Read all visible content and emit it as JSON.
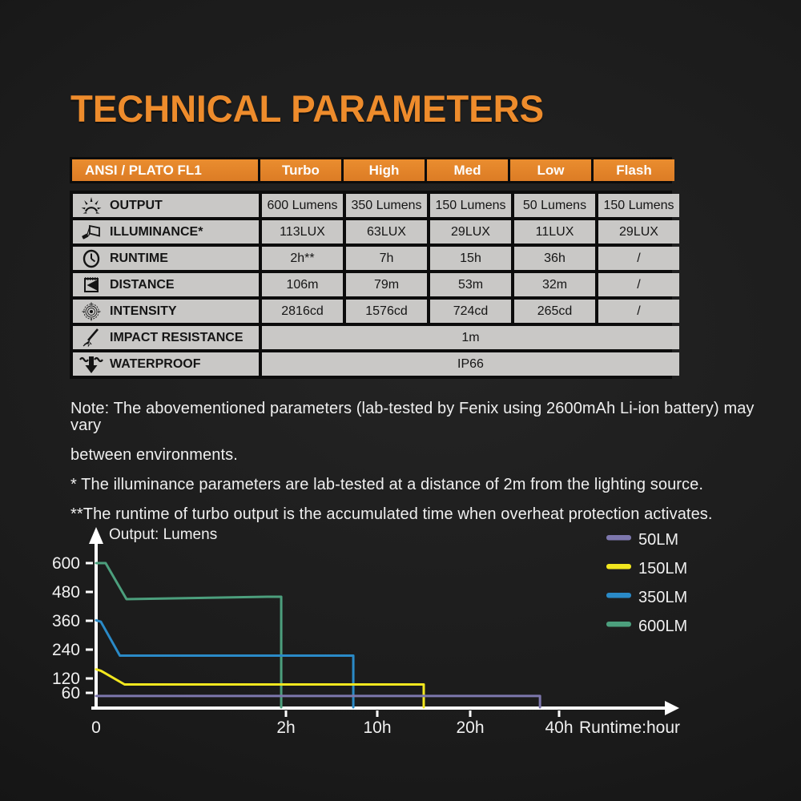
{
  "page": {
    "title": "TECHNICAL PARAMETERS"
  },
  "colors": {
    "accent_orange": "#ee8c2c",
    "table_header_orange": "#e2832a",
    "table_cell_gray": "#c9c8c6",
    "table_border_black": "#0c0c0c",
    "text_light": "#efefef",
    "background_dark": "#1b1b1b"
  },
  "table": {
    "header_label": "ANSI / PLATO FL1",
    "modes": [
      "Turbo",
      "High",
      "Med",
      "Low",
      "Flash"
    ],
    "rows": [
      {
        "icon": "light-burst-icon",
        "label": "OUTPUT",
        "values": [
          "600 Lumens",
          "350 Lumens",
          "150 Lumens",
          "50 Lumens",
          "150 Lumens"
        ]
      },
      {
        "icon": "flashlight-projection-icon",
        "label": "ILLUMINANCE*",
        "values": [
          "113LUX",
          "63LUX",
          "29LUX",
          "11LUX",
          "29LUX"
        ]
      },
      {
        "icon": "clock-icon",
        "label": "RUNTIME",
        "values": [
          "2h**",
          "7h",
          "15h",
          "36h",
          "/"
        ]
      },
      {
        "icon": "beam-distance-icon",
        "label": "DISTANCE",
        "values": [
          "106m",
          "79m",
          "53m",
          "32m",
          "/"
        ]
      },
      {
        "icon": "target-icon",
        "label": "INTENSITY",
        "values": [
          "2816cd",
          "1576cd",
          "724cd",
          "265cd",
          "/"
        ]
      },
      {
        "icon": "impact-arrow-icon",
        "label": "IMPACT RESISTANCE",
        "span_value": "1m"
      },
      {
        "icon": "waterproof-arrow-icon",
        "label": "WATERPROOF",
        "span_value": "IP66"
      }
    ]
  },
  "notes": {
    "lines": [
      "Note: The abovementioned parameters (lab-tested by Fenix using 2600mAh Li-ion battery) may vary",
      "between environments.",
      "* The illuminance parameters are lab-tested at a distance of 2m from the lighting source.",
      "**The runtime of turbo output is the accumulated time when overheat protection activates."
    ]
  },
  "chart_data": {
    "type": "line",
    "title": "",
    "ylabel": "Output: Lumens",
    "xlabel": "Runtime:hour",
    "ylim": [
      0,
      650
    ],
    "grid": false,
    "legend_position": "top-right",
    "x_axis_note": "non-linear piecewise scale",
    "y_ticks": [
      600,
      480,
      360,
      240,
      120,
      60
    ],
    "x_ticks": [
      {
        "v": 0,
        "label": "0"
      },
      {
        "v": 2,
        "label": "2h"
      },
      {
        "v": 10,
        "label": "10h"
      },
      {
        "v": 20,
        "label": "20h"
      },
      {
        "v": 40,
        "label": "40h"
      }
    ],
    "series": [
      {
        "name": "50LM",
        "color": "#7d77ad",
        "points": [
          [
            0,
            47
          ],
          [
            35.7,
            47
          ],
          [
            35.7,
            0
          ]
        ]
      },
      {
        "name": "150LM",
        "color": "#f2e71f",
        "points": [
          [
            0,
            158
          ],
          [
            0.05,
            152
          ],
          [
            0.3,
            95
          ],
          [
            15,
            95
          ],
          [
            15,
            0
          ]
        ]
      },
      {
        "name": "350LM",
        "color": "#2a8ac7",
        "points": [
          [
            0,
            362
          ],
          [
            0.05,
            356
          ],
          [
            0.25,
            215
          ],
          [
            7.9,
            215
          ],
          [
            7.9,
            0
          ]
        ]
      },
      {
        "name": "600LM",
        "color": "#4c9f7d",
        "points": [
          [
            0,
            600
          ],
          [
            0.1,
            600
          ],
          [
            0.32,
            450
          ],
          [
            1.8,
            460
          ],
          [
            1.95,
            460
          ],
          [
            1.95,
            0
          ]
        ]
      }
    ]
  }
}
